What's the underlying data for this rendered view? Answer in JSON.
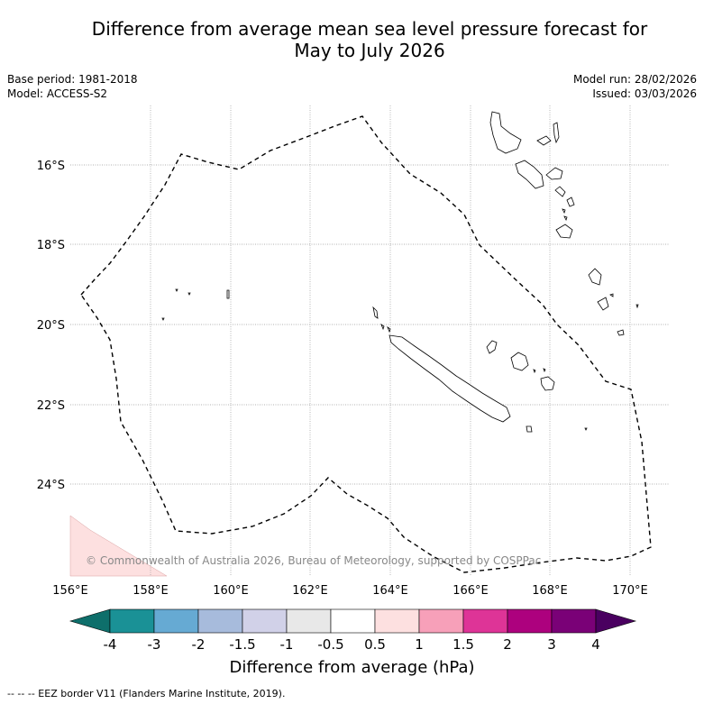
{
  "title_line1": "Difference from average mean sea level pressure forecast for",
  "title_line2": "May to July 2026",
  "base_period": "Base period: 1981-2018",
  "model": "Model: ACCESS-S2",
  "model_run": "Model run: 28/02/2026",
  "issued": "Issued: 03/03/2026",
  "copyright": "© Commonwealth of Australia 2026, Bureau of Meteorology, supported by COSPPac",
  "lon_ticks": [
    "156°E",
    "158°E",
    "160°E",
    "162°E",
    "164°E",
    "166°E",
    "168°E",
    "170°E"
  ],
  "lat_ticks": [
    "16°S",
    "18°S",
    "20°S",
    "22°S",
    "24°S"
  ],
  "colorbar": {
    "title": "Difference from average (hPa)",
    "labels": [
      "-4",
      "-3",
      "-2",
      "-1.5",
      "-1",
      "-0.5",
      "0.5",
      "1",
      "1.5",
      "2",
      "3",
      "4"
    ],
    "colors": [
      "#0e6f6b",
      "#1a9196",
      "#66aad3",
      "#a7bbdc",
      "#d1d1e8",
      "#e8e8e8",
      "#ffffff",
      "#fde0e0",
      "#f7a0b9",
      "#de3497",
      "#ad017e",
      "#7a0177",
      "#4a0060"
    ]
  },
  "footer": "-- -- -- EEZ border V11 (Flanders Marine Institute, 2019)."
}
